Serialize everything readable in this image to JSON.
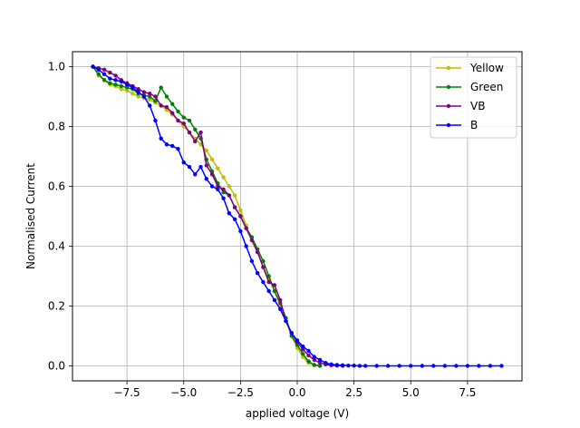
{
  "chart_data": {
    "type": "line",
    "title": "",
    "xlabel": "applied voltage (V)",
    "ylabel": "Normalised Current",
    "xlim": [
      -9.9,
      9.9
    ],
    "ylim": [
      -0.05,
      1.05
    ],
    "xticks": [
      -7.5,
      -5.0,
      -2.5,
      0.0,
      2.5,
      5.0,
      7.5
    ],
    "xtick_labels": [
      "−7.5",
      "−5.0",
      "−2.5",
      "0.0",
      "2.5",
      "5.0",
      "7.5"
    ],
    "yticks": [
      0.0,
      0.2,
      0.4,
      0.6,
      0.8,
      1.0
    ],
    "ytick_labels": [
      "0.0",
      "0.2",
      "0.4",
      "0.6",
      "0.8",
      "1.0"
    ],
    "grid": true,
    "legend_position": "top-right",
    "series": [
      {
        "name": "Yellow",
        "color": "#bfbf00",
        "x": [
          -9.0,
          -8.75,
          -8.5,
          -8.25,
          -8.0,
          -7.75,
          -7.5,
          -7.25,
          -7.0,
          -6.75,
          -6.5,
          -6.25,
          -6.0,
          -5.75,
          -5.5,
          -5.25,
          -5.0,
          -4.75,
          -4.5,
          -4.25,
          -4.0,
          -3.75,
          -3.5,
          -3.25,
          -3.0,
          -2.75,
          -2.5,
          -2.25,
          -2.0,
          -1.75,
          -1.5,
          -1.25,
          -1.0,
          -0.75,
          -0.5,
          -0.25,
          0.0,
          0.25,
          0.5,
          0.75,
          1.0
        ],
        "y": [
          1.0,
          0.97,
          0.955,
          0.94,
          0.935,
          0.925,
          0.92,
          0.91,
          0.9,
          0.895,
          0.89,
          0.88,
          0.87,
          0.855,
          0.84,
          0.82,
          0.8,
          0.78,
          0.76,
          0.74,
          0.72,
          0.69,
          0.66,
          0.63,
          0.6,
          0.57,
          0.52,
          0.47,
          0.42,
          0.38,
          0.33,
          0.29,
          0.25,
          0.2,
          0.15,
          0.1,
          0.06,
          0.03,
          0.01,
          0.003,
          0.0
        ]
      },
      {
        "name": "Green",
        "color": "#008000",
        "x": [
          -9.0,
          -8.75,
          -8.5,
          -8.25,
          -8.0,
          -7.75,
          -7.5,
          -7.25,
          -7.0,
          -6.75,
          -6.5,
          -6.25,
          -6.0,
          -5.75,
          -5.5,
          -5.25,
          -5.0,
          -4.75,
          -4.5,
          -4.25,
          -4.0,
          -3.75,
          -3.5,
          -3.25,
          -3.0,
          -2.75,
          -2.5,
          -2.25,
          -2.0,
          -1.75,
          -1.5,
          -1.25,
          -1.0,
          -0.75,
          -0.5,
          -0.25,
          0.0,
          0.25,
          0.5,
          0.75,
          1.0
        ],
        "y": [
          1.0,
          0.975,
          0.955,
          0.945,
          0.94,
          0.935,
          0.93,
          0.925,
          0.91,
          0.905,
          0.9,
          0.885,
          0.93,
          0.9,
          0.875,
          0.85,
          0.83,
          0.82,
          0.79,
          0.76,
          0.69,
          0.65,
          0.61,
          0.58,
          0.57,
          0.53,
          0.5,
          0.46,
          0.43,
          0.39,
          0.35,
          0.3,
          0.25,
          0.21,
          0.16,
          0.1,
          0.07,
          0.04,
          0.015,
          0.003,
          0.0
        ]
      },
      {
        "name": "VB",
        "color": "#800080",
        "x": [
          -9.0,
          -8.75,
          -8.5,
          -8.25,
          -8.0,
          -7.75,
          -7.5,
          -7.25,
          -7.0,
          -6.75,
          -6.5,
          -6.25,
          -6.0,
          -5.75,
          -5.5,
          -5.25,
          -5.0,
          -4.75,
          -4.5,
          -4.25,
          -4.0,
          -3.75,
          -3.5,
          -3.25,
          -3.0,
          -2.75,
          -2.5,
          -2.25,
          -2.0,
          -1.75,
          -1.5,
          -1.25,
          -1.0,
          -0.75,
          -0.5,
          -0.25,
          0.0,
          0.25,
          0.5,
          0.75,
          1.0,
          1.25,
          1.5,
          1.75,
          2.0
        ],
        "y": [
          1.0,
          0.995,
          0.99,
          0.98,
          0.97,
          0.955,
          0.945,
          0.935,
          0.925,
          0.915,
          0.91,
          0.9,
          0.87,
          0.865,
          0.845,
          0.82,
          0.81,
          0.78,
          0.75,
          0.78,
          0.67,
          0.64,
          0.6,
          0.59,
          0.57,
          0.53,
          0.5,
          0.46,
          0.42,
          0.38,
          0.33,
          0.28,
          0.27,
          0.22,
          0.15,
          0.11,
          0.08,
          0.055,
          0.035,
          0.02,
          0.01,
          0.005,
          0.002,
          0.001,
          0.0
        ]
      },
      {
        "name": "B",
        "color": "#0000ff",
        "x": [
          -9.0,
          -8.75,
          -8.5,
          -8.25,
          -8.0,
          -7.75,
          -7.5,
          -7.25,
          -7.0,
          -6.75,
          -6.5,
          -6.25,
          -6.0,
          -5.75,
          -5.5,
          -5.25,
          -5.0,
          -4.75,
          -4.5,
          -4.25,
          -4.0,
          -3.75,
          -3.5,
          -3.25,
          -3.0,
          -2.75,
          -2.5,
          -2.25,
          -2.0,
          -1.75,
          -1.5,
          -1.25,
          -1.0,
          -0.75,
          -0.5,
          -0.25,
          0.0,
          0.25,
          0.5,
          0.75,
          1.0,
          1.25,
          1.5,
          1.75,
          2.0,
          2.25,
          2.5,
          2.75,
          3.0,
          3.5,
          4.0,
          4.5,
          5.0,
          5.5,
          6.0,
          6.5,
          7.0,
          7.5,
          8.0,
          8.5,
          9.0
        ],
        "y": [
          1.0,
          0.99,
          0.975,
          0.96,
          0.955,
          0.95,
          0.94,
          0.93,
          0.915,
          0.9,
          0.87,
          0.82,
          0.76,
          0.74,
          0.735,
          0.725,
          0.68,
          0.665,
          0.64,
          0.665,
          0.625,
          0.6,
          0.59,
          0.56,
          0.51,
          0.49,
          0.45,
          0.4,
          0.35,
          0.31,
          0.28,
          0.25,
          0.22,
          0.19,
          0.15,
          0.11,
          0.085,
          0.065,
          0.05,
          0.03,
          0.02,
          0.01,
          0.005,
          0.003,
          0.002,
          0.001,
          0.001,
          0.0,
          0.0,
          0.0,
          0.0,
          0.0,
          0.0,
          0.0,
          0.0,
          0.0,
          0.0,
          0.0,
          0.0,
          0.0,
          0.0
        ]
      }
    ]
  }
}
